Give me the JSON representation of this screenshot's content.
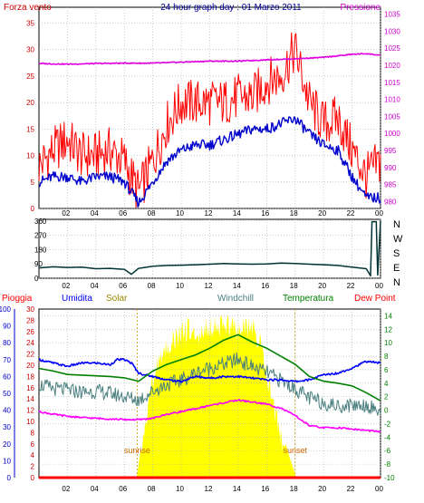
{
  "colors": {
    "wind": "#ff0000",
    "gust_avg": "#0000cc",
    "pressure": "#e000e0",
    "direction": "#003333",
    "solar": "#ffff00",
    "humidity": "#0000ff",
    "windchill": "#4a7f7f",
    "temperature": "#008000",
    "dewpoint": "#ff00ff",
    "rain": "#ff0000",
    "plot_bg": "#ffffff",
    "grid": "#9fb3b3"
  },
  "chart_data": [
    {
      "type": "line",
      "title": "24 hour graph day : 01 Marzo 2011",
      "left_label": "Forza vento",
      "right_label": "Pressione",
      "x_ticks": [
        "02",
        "04",
        "06",
        "08",
        "10",
        "12",
        "14",
        "16",
        "18",
        "20",
        "22",
        "00"
      ],
      "y_left_ticks": [
        "0",
        "5",
        "10",
        "15",
        "20",
        "25",
        "30",
        "35"
      ],
      "y_right_ticks": [
        "980",
        "985",
        "990",
        "995",
        "1000",
        "1005",
        "1010",
        "1015",
        "1020",
        "1025",
        "1030",
        "1035"
      ],
      "ylim_left": [
        0,
        38
      ],
      "ylim_right": [
        978,
        1037
      ],
      "xlim": [
        0,
        24
      ],
      "series": [
        {
          "key": "wind",
          "x": [
            0,
            1,
            2,
            3,
            4,
            5,
            6,
            7,
            8,
            9,
            10,
            11,
            12,
            13,
            14,
            15,
            16,
            17,
            18,
            19,
            20,
            21,
            22,
            23,
            24
          ],
          "values": [
            8,
            11,
            13,
            10,
            10,
            11,
            9,
            3,
            9,
            16,
            20,
            20,
            20,
            20,
            21,
            21,
            24,
            25,
            30,
            20,
            16,
            17,
            11,
            6,
            9
          ]
        },
        {
          "key": "gust_avg",
          "x": [
            0,
            1,
            2,
            3,
            4,
            5,
            6,
            7,
            8,
            9,
            10,
            11,
            12,
            13,
            14,
            15,
            16,
            17,
            18,
            19,
            20,
            21,
            22,
            23,
            24
          ],
          "values": [
            5,
            6,
            6,
            5,
            6,
            6,
            5,
            1,
            5,
            9,
            11,
            12,
            12,
            13,
            14,
            15,
            15,
            16,
            17,
            14,
            12,
            11,
            6,
            2,
            2
          ]
        },
        {
          "key": "pressure",
          "x": [
            0,
            2,
            4,
            6,
            8,
            10,
            12,
            14,
            16,
            18,
            20,
            22,
            23,
            24
          ],
          "values": [
            1020.5,
            1020.3,
            1020.5,
            1020.6,
            1020.6,
            1020.9,
            1021.2,
            1021.2,
            1021.6,
            1021.9,
            1022.3,
            1023.2,
            1023.4,
            1022.9
          ]
        }
      ]
    },
    {
      "type": "line",
      "title": "",
      "x_ticks": [
        "02",
        "04",
        "06",
        "08",
        "10",
        "12",
        "14",
        "16",
        "18",
        "20",
        "22",
        "00"
      ],
      "y_left_ticks": [
        "0",
        "90",
        "180",
        "270",
        "360"
      ],
      "y_right_ticks": [
        "N",
        "W",
        "S",
        "E",
        "N"
      ],
      "ylim": [
        0,
        370
      ],
      "xlim": [
        0,
        24
      ],
      "series": [
        {
          "key": "direction",
          "x": [
            0,
            1,
            2,
            3,
            4,
            5,
            6,
            6.5,
            7,
            8,
            9,
            10,
            11,
            12,
            13,
            14,
            15,
            16,
            17,
            18,
            19,
            20,
            21,
            22,
            23,
            23.3,
            23.4,
            23.7,
            23.8,
            24
          ],
          "values": [
            65,
            72,
            68,
            70,
            60,
            62,
            55,
            25,
            62,
            75,
            80,
            82,
            85,
            88,
            92,
            90,
            88,
            90,
            95,
            92,
            88,
            85,
            80,
            70,
            60,
            15,
            355,
            355,
            20,
            360
          ]
        }
      ]
    },
    {
      "type": "line",
      "title": "",
      "legend": [
        "Pioggia",
        "Umidita",
        "Solar",
        "Windchill",
        "Temperatura",
        "Dew Point"
      ],
      "x_ticks": [
        "02",
        "04",
        "06",
        "08",
        "10",
        "12",
        "14",
        "16",
        "18",
        "20",
        "22",
        "00"
      ],
      "y_left_blue_ticks": [
        "0",
        "10",
        "20",
        "30",
        "40",
        "50",
        "60",
        "70",
        "80",
        "90",
        "100"
      ],
      "y_left_red_ticks": [
        "0",
        "2",
        "4",
        "6",
        "8",
        "10",
        "12",
        "14",
        "16",
        "18",
        "20",
        "22",
        "24",
        "26",
        "28",
        "30"
      ],
      "y_right_ticks": [
        "-10",
        "-8",
        "-6",
        "-4",
        "-2",
        "0",
        "2",
        "4",
        "6",
        "8",
        "10",
        "12",
        "14"
      ],
      "ylim_humidity": [
        0,
        100
      ],
      "ylim_temp": [
        -10,
        15
      ],
      "xlim": [
        0,
        24
      ],
      "annotations": [
        "sunrise",
        "sunset"
      ],
      "sunrise_x": 6.9,
      "sunset_x": 18.0,
      "series": [
        {
          "key": "solar",
          "unit": "humidity_axis",
          "x": [
            6.9,
            7.2,
            7.5,
            8,
            8.5,
            9,
            9.5,
            10,
            10.5,
            11,
            11.5,
            12,
            12.5,
            13,
            13.5,
            14,
            14.5,
            15,
            15.5,
            16,
            16.5,
            17,
            17.5,
            18
          ],
          "values": [
            2,
            20,
            42,
            63,
            79,
            85,
            89,
            93,
            95,
            90,
            93,
            96,
            97,
            98,
            97,
            92,
            96,
            96,
            88,
            66,
            49,
            31,
            15,
            2
          ]
        },
        {
          "key": "humidity",
          "unit": "humidity_axis",
          "x": [
            0,
            1,
            2,
            3,
            4,
            5,
            5.5,
            6,
            6.5,
            7,
            8,
            9,
            10,
            11,
            12,
            13,
            14,
            15,
            16,
            17,
            18,
            19,
            20,
            21,
            22,
            23,
            24
          ],
          "values": [
            70,
            68,
            66,
            68,
            68,
            67,
            70,
            70,
            68,
            62,
            60,
            58,
            57,
            60,
            59,
            60,
            60,
            59,
            58,
            58,
            57,
            58,
            61,
            62,
            65,
            69,
            68
          ]
        },
        {
          "key": "windchill",
          "unit": "temp_axis",
          "x": [
            0,
            1,
            2,
            3,
            4,
            5,
            6,
            7,
            8,
            9,
            10,
            11,
            12,
            13,
            14,
            15,
            16,
            17,
            18,
            19,
            20,
            21,
            22,
            23,
            24
          ],
          "values": [
            3.8,
            3.2,
            3.0,
            2.7,
            2.8,
            2.5,
            2.0,
            1.5,
            2.8,
            3.8,
            4.5,
            5.5,
            6.3,
            6.8,
            7.5,
            6.4,
            5.6,
            4.4,
            3.2,
            1.8,
            1.1,
            0.6,
            0.8,
            0.8,
            -0.2
          ]
        },
        {
          "key": "temperature",
          "unit": "temp_axis",
          "x": [
            0,
            1,
            2,
            3,
            4,
            5,
            6,
            7,
            8,
            9,
            10,
            11,
            12,
            13,
            14,
            15,
            16,
            17,
            18,
            19,
            20,
            21,
            22,
            23,
            24
          ],
          "values": [
            6.2,
            5.8,
            5.3,
            5.2,
            5.1,
            5.0,
            4.8,
            4.3,
            5.8,
            6.8,
            7.5,
            8.2,
            9.2,
            10.4,
            11.2,
            10.1,
            9.2,
            8.0,
            6.8,
            5.0,
            4.3,
            4.0,
            3.6,
            2.6,
            1.4
          ]
        },
        {
          "key": "dewpoint",
          "unit": "temp_axis",
          "x": [
            0,
            1,
            2,
            3,
            4,
            5,
            6,
            7,
            8,
            9,
            10,
            11,
            12,
            13,
            14,
            15,
            16,
            17,
            18,
            19,
            20,
            21,
            22,
            23,
            24
          ],
          "values": [
            -0.2,
            -0.6,
            -0.9,
            -1.1,
            -1.2,
            -1.3,
            -1.4,
            -1.4,
            -1.2,
            -0.6,
            -0.2,
            0.2,
            0.7,
            1.1,
            1.5,
            1.2,
            0.9,
            0.3,
            -0.8,
            -2.3,
            -2.6,
            -2.6,
            -2.8,
            -3.0,
            -3.2
          ]
        },
        {
          "key": "rain",
          "unit": "rain_axis",
          "x": [
            0,
            24
          ],
          "values": [
            0,
            0
          ]
        }
      ]
    }
  ]
}
